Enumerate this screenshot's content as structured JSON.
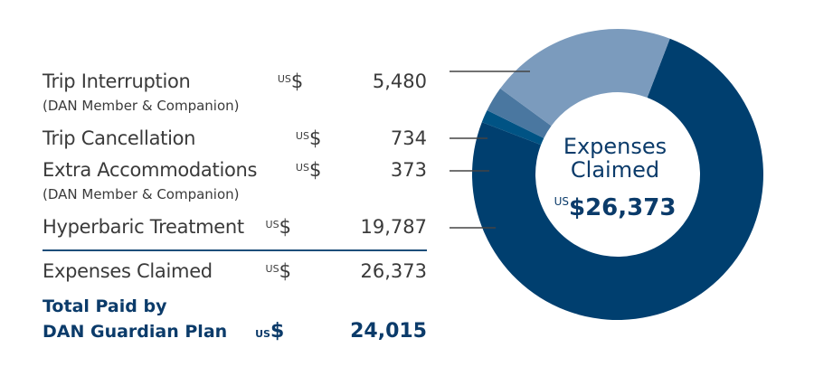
{
  "chart_data": {
    "type": "pie",
    "title": "Expenses Claimed",
    "center_label": "Expenses Claimed",
    "center_value_prefix": "US",
    "center_value": "$26,373",
    "currency_prefix": "US",
    "currency_symbol": "$",
    "slices": [
      {
        "name": "Hyperbaric Treatment",
        "value": 19787,
        "display": "19,787",
        "color": "#003f6f"
      },
      {
        "name": "Extra Accommodations",
        "sub": "(DAN Member & Companion)",
        "value": 373,
        "display": "373",
        "color": "#005384"
      },
      {
        "name": "Trip Cancellation",
        "value": 734,
        "display": "734",
        "color": "#4a77a0"
      },
      {
        "name": "Trip Interruption",
        "sub": "(DAN Member & Companion)",
        "value": 5480,
        "display": "5,480",
        "color": "#7b9bbd"
      }
    ],
    "summary": {
      "claimed_label": "Expenses Claimed",
      "claimed_value": "26,373",
      "paid_label_1": "Total Paid by",
      "paid_label_2": "DAN Guardian Plan",
      "paid_value": "24,015"
    }
  }
}
